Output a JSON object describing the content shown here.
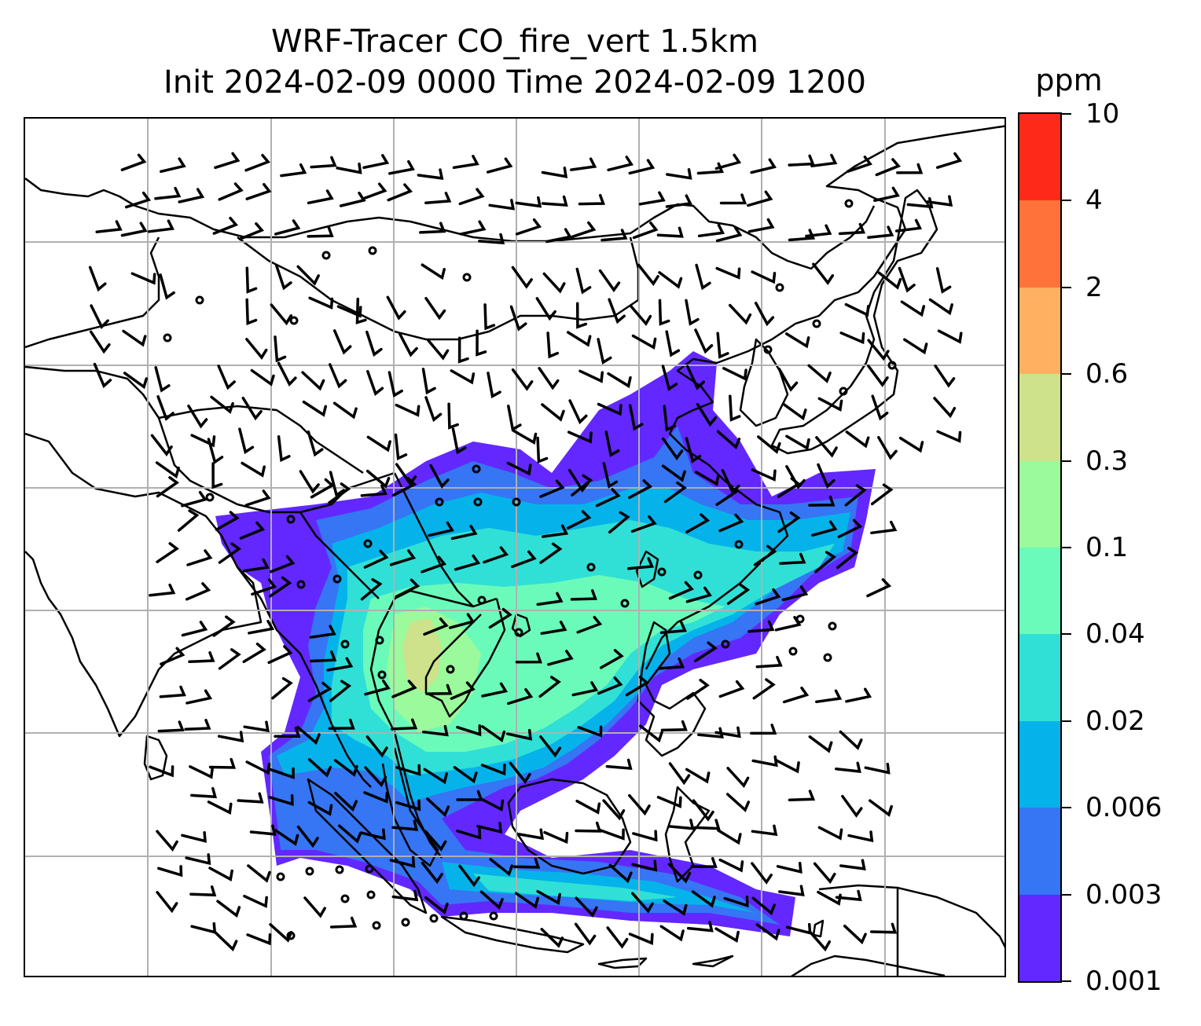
{
  "title": {
    "line1": "WRF-Tracer CO_fire_vert 1.5km",
    "line2": "Init 2024-02-09 0000 Time 2024-02-09 1200"
  },
  "colorbar": {
    "unit": "ppm",
    "ticks": [
      "0.001",
      "0.003",
      "0.006",
      "0.02",
      "0.04",
      "0.1",
      "0.3",
      "0.6",
      "2",
      "4",
      "10"
    ],
    "colors": [
      "#6228ff",
      "#3675f3",
      "#05b3ea",
      "#30e0d6",
      "#6afbba",
      "#9bfa9b",
      "#cde28a",
      "#ffb161",
      "#ff723a",
      "#ff291a"
    ]
  },
  "map": {
    "coastline_color": "#000000",
    "gridline_color": "#b0b0b0",
    "wind_barb_color": "#000000",
    "calm_marker": "circle"
  }
}
